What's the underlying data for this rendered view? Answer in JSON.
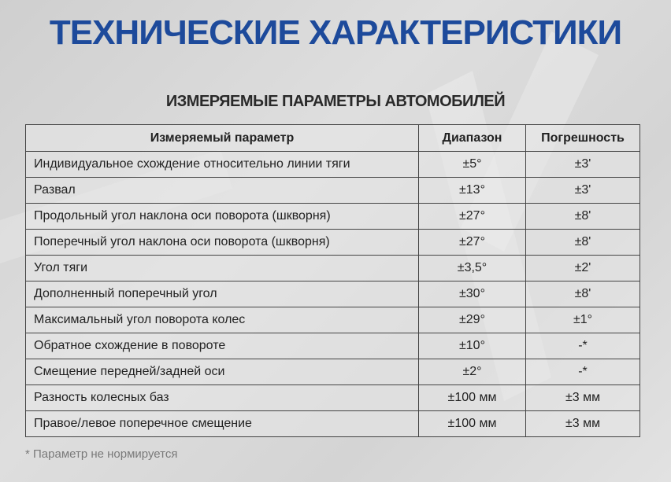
{
  "title": "ТЕХНИЧЕСКИЕ ХАРАКТЕРИСТИКИ",
  "subtitle": "ИЗМЕРЯЕМЫЕ ПАРАМЕТРЫ АВТОМОБИЛЕЙ",
  "colors": {
    "title": "#1d4a9b"
  },
  "table": {
    "headers": [
      "Измеряемый параметр",
      "Диапазон",
      "Погрешность"
    ],
    "rows": [
      [
        "Индивидуальное схождение относительно линии тяги",
        "±5°",
        "±3'"
      ],
      [
        "Развал",
        "±13°",
        "±3'"
      ],
      [
        "Продольный угол наклона оси поворота (шкворня)",
        "±27°",
        "±8'"
      ],
      [
        "Поперечный угол наклона оси поворота (шкворня)",
        "±27°",
        "±8'"
      ],
      [
        "Угол тяги",
        "±3,5°",
        "±2'"
      ],
      [
        "Дополненный поперечный угол",
        "±30°",
        "±8'"
      ],
      [
        "Максимальный угол поворота колес",
        "±29°",
        "±1°"
      ],
      [
        "Обратное схождение в повороте",
        "±10°",
        "-*"
      ],
      [
        "Смещение передней/задней оси",
        "±2°",
        "-*"
      ],
      [
        "Разность колесных баз",
        "±100 мм",
        "±3 мм"
      ],
      [
        "Правое/левое поперечное смещение",
        "±100 мм",
        "±3 мм"
      ]
    ]
  },
  "footnote": "* Параметр не нормируется"
}
